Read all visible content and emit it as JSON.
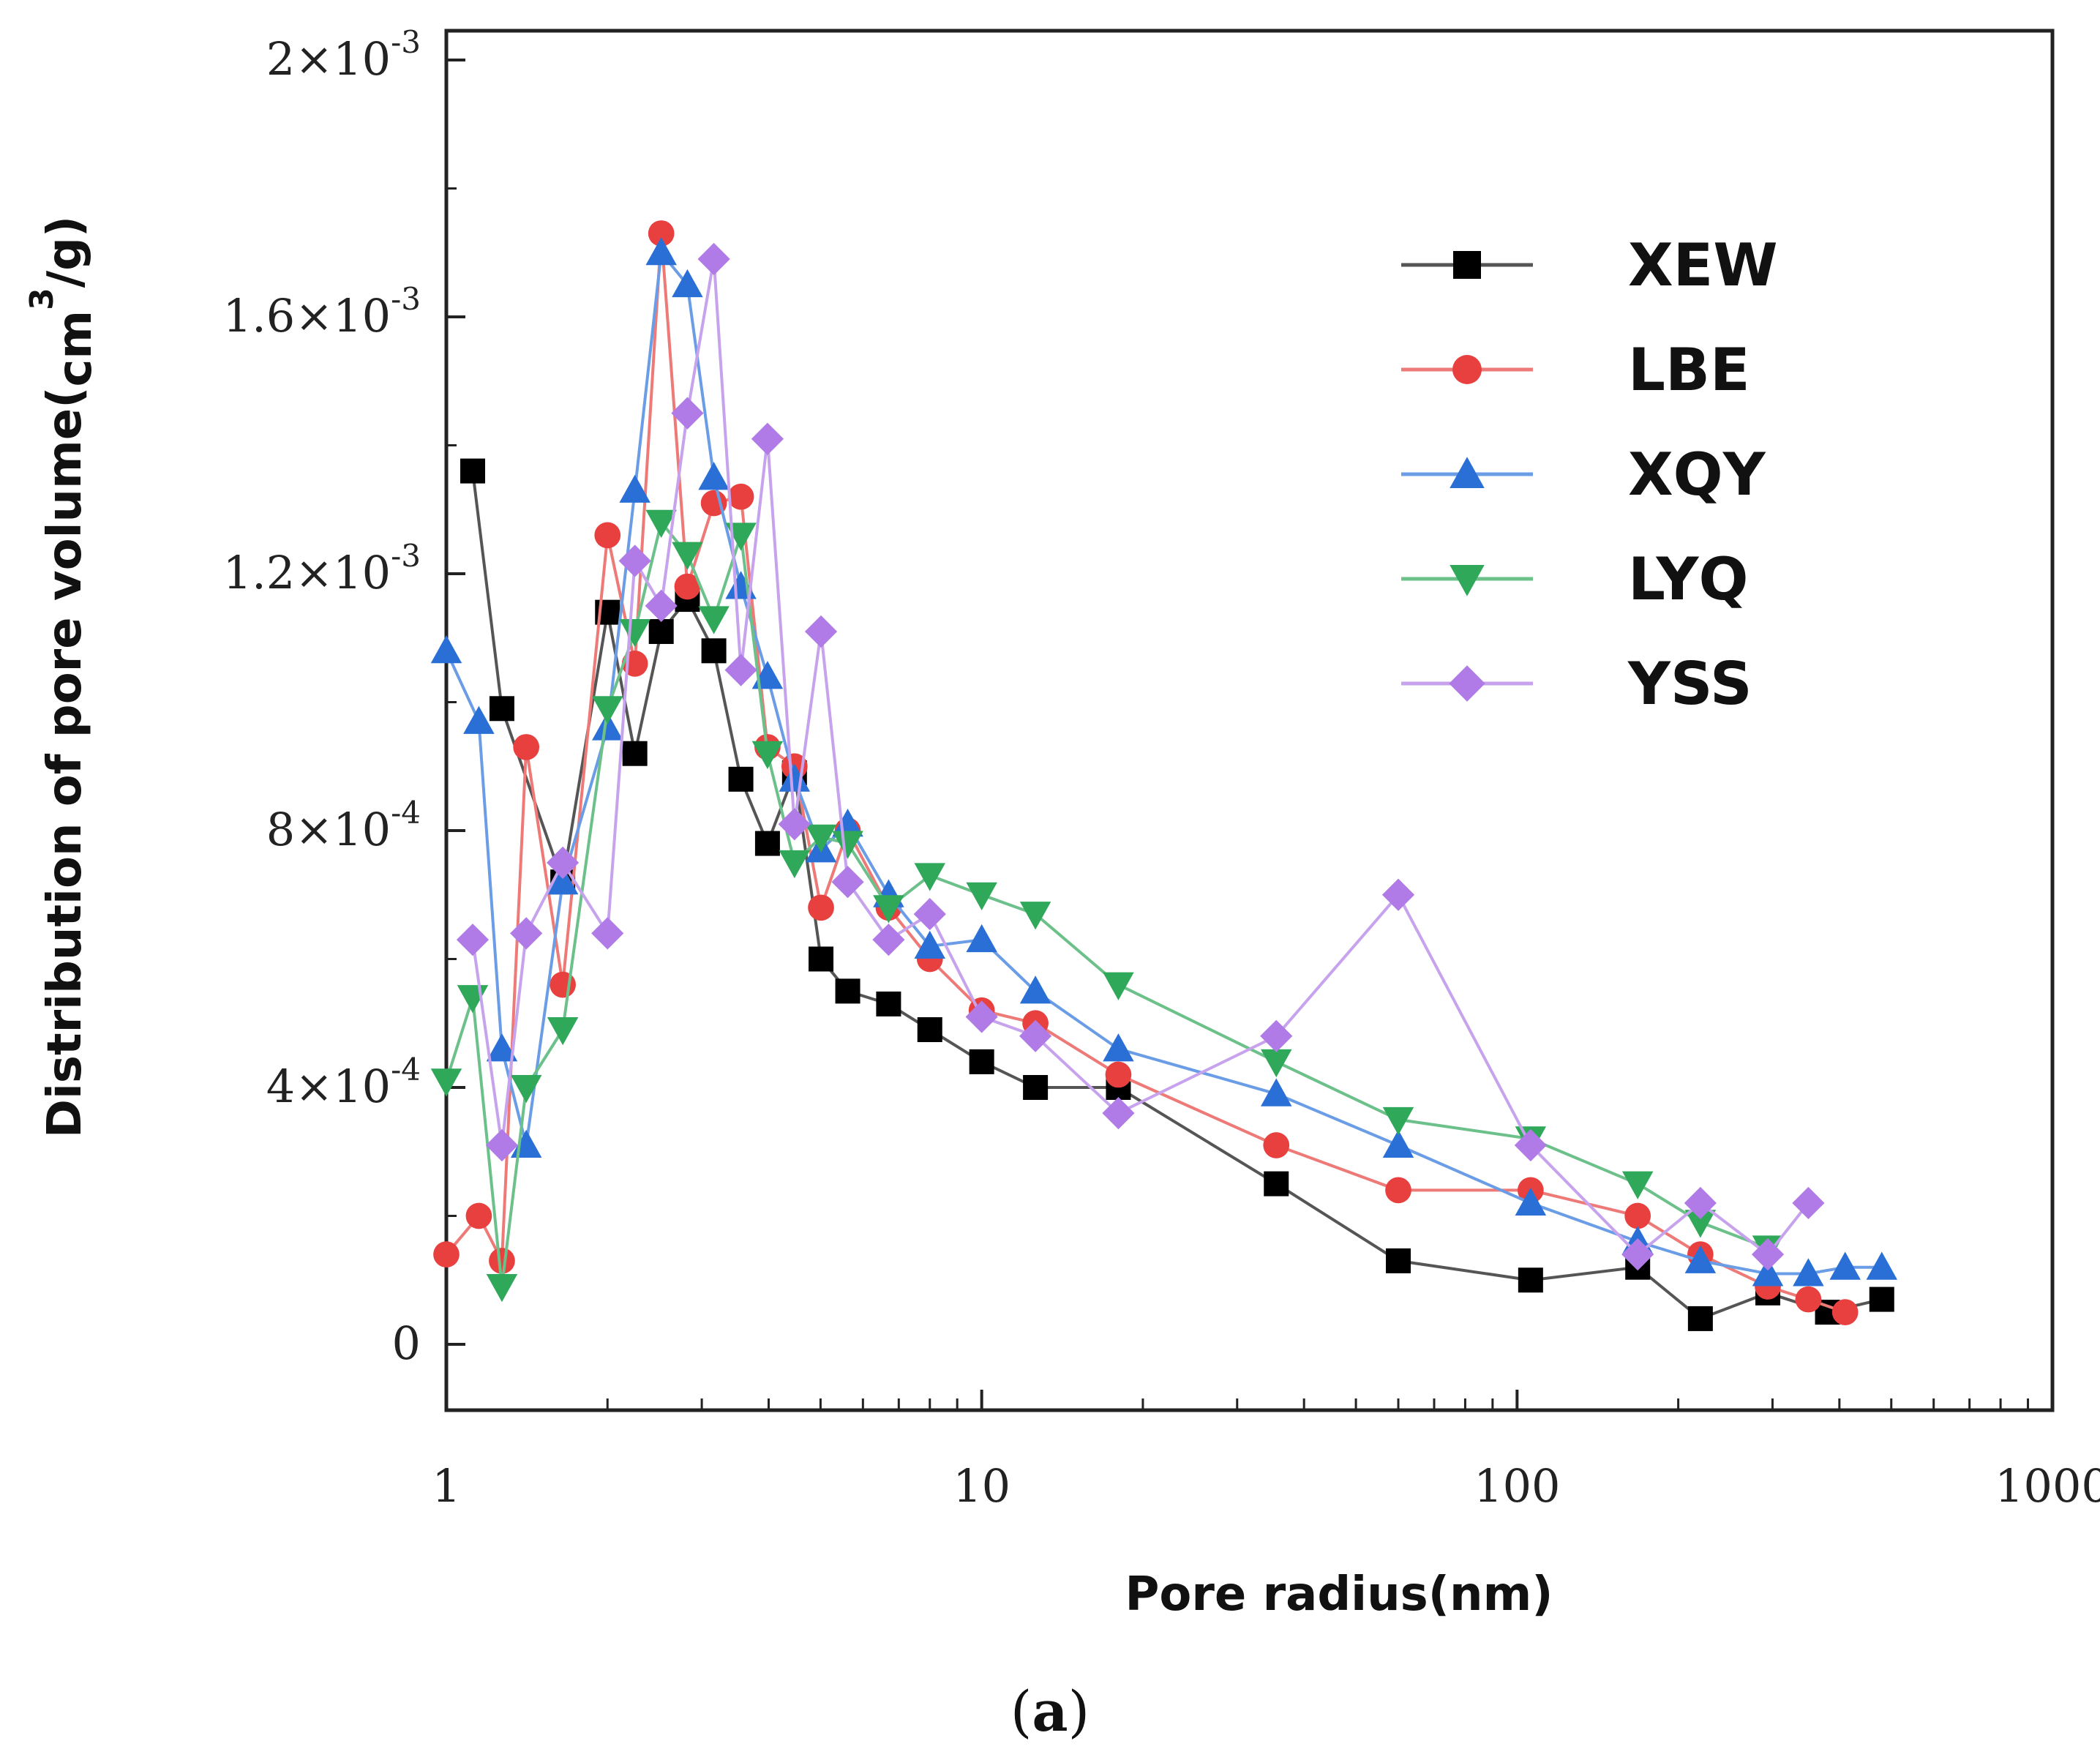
{
  "chart_data": {
    "type": "line",
    "x_scale": "log",
    "xlabel": "Pore radius(nm)",
    "ylabel_main": "Distribution of pore volume(",
    "ylabel_unit": "cm",
    "ylabel_sup": "3",
    "ylabel_tail": "/g)",
    "xlim": [
      1,
      1000
    ],
    "ylim": [
      -0.0001,
      0.002
    ],
    "x_ticks": [
      {
        "value": 1,
        "label": "1"
      },
      {
        "value": 10,
        "label": "10"
      },
      {
        "value": 100,
        "label": "100"
      },
      {
        "value": 1000,
        "label": "1000"
      }
    ],
    "y_ticks": [
      {
        "value": 0,
        "mant": "0",
        "exp": ""
      },
      {
        "value": 0.0004,
        "mant": "4×10",
        "exp": "-4"
      },
      {
        "value": 0.0008,
        "mant": "8×10",
        "exp": "-4"
      },
      {
        "value": 0.0012,
        "mant": "1.2×10",
        "exp": "-3"
      },
      {
        "value": 0.0016,
        "mant": "1.6×10",
        "exp": "-3"
      },
      {
        "value": 0.002,
        "mant": "2×10",
        "exp": "-3"
      }
    ],
    "legend_position": "top-right",
    "caption_open": "(",
    "caption_letter": "a",
    "caption_close": ")",
    "series": [
      {
        "name": "XEW",
        "color": "#000000",
        "line_color": "#555555",
        "marker": "square",
        "x": [
          1.12,
          1.27,
          1.65,
          2.0,
          2.25,
          2.52,
          2.82,
          3.16,
          3.55,
          3.98,
          4.47,
          5.01,
          5.62,
          6.7,
          8.0,
          10.0,
          12.6,
          18.0,
          35.5,
          60.0,
          106,
          168,
          220,
          294,
          380,
          480
        ],
        "y": [
          0.00136,
          0.00099,
          0.00072,
          0.00114,
          0.00092,
          0.00111,
          0.00116,
          0.00108,
          0.00088,
          0.00078,
          0.00089,
          0.0006,
          0.00055,
          0.00053,
          0.00049,
          0.00044,
          0.0004,
          0.0004,
          0.00025,
          0.00013,
          0.0001,
          0.00012,
          4e-05,
          8e-05,
          5e-05,
          7e-05
        ]
      },
      {
        "name": "LBE",
        "color": "#e8403f",
        "line_color": "#ee7a78",
        "marker": "circle",
        "x": [
          1.0,
          1.15,
          1.27,
          1.41,
          1.65,
          2.0,
          2.25,
          2.52,
          2.82,
          3.16,
          3.55,
          3.98,
          4.47,
          5.01,
          5.62,
          6.7,
          8.0,
          10.0,
          12.6,
          18.0,
          35.5,
          60.0,
          106,
          168,
          220,
          294,
          350,
          410
        ],
        "y": [
          0.00014,
          0.0002,
          0.00013,
          0.00093,
          0.00056,
          0.00126,
          0.00106,
          0.00173,
          0.00118,
          0.00131,
          0.00132,
          0.00093,
          0.0009,
          0.00068,
          0.0008,
          0.00068,
          0.0006,
          0.00052,
          0.0005,
          0.00042,
          0.00031,
          0.00024,
          0.00024,
          0.0002,
          0.00014,
          9e-05,
          7e-05,
          5e-05
        ]
      },
      {
        "name": "XQY",
        "color": "#2a6fd6",
        "line_color": "#6a9de6",
        "marker": "triangle-up",
        "x": [
          1.0,
          1.15,
          1.27,
          1.41,
          1.65,
          2.0,
          2.25,
          2.52,
          2.82,
          3.16,
          3.55,
          3.98,
          4.47,
          5.01,
          5.62,
          6.7,
          8.0,
          10.0,
          12.6,
          18.0,
          35.5,
          60.0,
          106,
          168,
          220,
          294,
          350,
          410,
          480
        ],
        "y": [
          0.00108,
          0.00097,
          0.00046,
          0.00031,
          0.00072,
          0.00096,
          0.00133,
          0.0017,
          0.00165,
          0.00135,
          0.00118,
          0.00104,
          0.00088,
          0.00077,
          0.00081,
          0.0007,
          0.00062,
          0.00063,
          0.00055,
          0.00046,
          0.00039,
          0.00031,
          0.00022,
          0.00016,
          0.00013,
          0.00011,
          0.00011,
          0.00012,
          0.00012
        ]
      },
      {
        "name": "LYQ",
        "color": "#2fa85a",
        "line_color": "#6cc08a",
        "marker": "triangle-down",
        "x": [
          1.0,
          1.12,
          1.27,
          1.41,
          1.65,
          2.0,
          2.25,
          2.52,
          2.82,
          3.16,
          3.55,
          3.98,
          4.47,
          5.01,
          5.62,
          6.7,
          8.0,
          10.0,
          12.6,
          18.0,
          35.5,
          60.0,
          106,
          168,
          220,
          294
        ],
        "y": [
          0.00041,
          0.00054,
          9e-05,
          0.0004,
          0.00049,
          0.00099,
          0.00111,
          0.00128,
          0.00123,
          0.00113,
          0.00126,
          0.00092,
          0.00075,
          0.00079,
          0.00078,
          0.00068,
          0.00073,
          0.0007,
          0.00067,
          0.00056,
          0.00044,
          0.00035,
          0.00032,
          0.00025,
          0.00019,
          0.00015
        ]
      },
      {
        "name": "YSS",
        "color": "#b07be6",
        "line_color": "#c7a3ee",
        "marker": "diamond",
        "x": [
          1.12,
          1.27,
          1.41,
          1.65,
          2.0,
          2.25,
          2.52,
          2.82,
          3.16,
          3.55,
          3.98,
          4.47,
          5.01,
          5.62,
          6.7,
          8.0,
          10.0,
          12.6,
          18.0,
          35.5,
          60.0,
          106,
          168,
          220,
          294,
          350
        ],
        "y": [
          0.00063,
          0.00031,
          0.00064,
          0.00075,
          0.00064,
          0.00122,
          0.00115,
          0.00145,
          0.00169,
          0.00105,
          0.00141,
          0.00081,
          0.00111,
          0.00072,
          0.00063,
          0.00067,
          0.00051,
          0.00048,
          0.00036,
          0.00048,
          0.0007,
          0.00031,
          0.00014,
          0.00022,
          0.00014,
          0.00022
        ]
      }
    ]
  }
}
